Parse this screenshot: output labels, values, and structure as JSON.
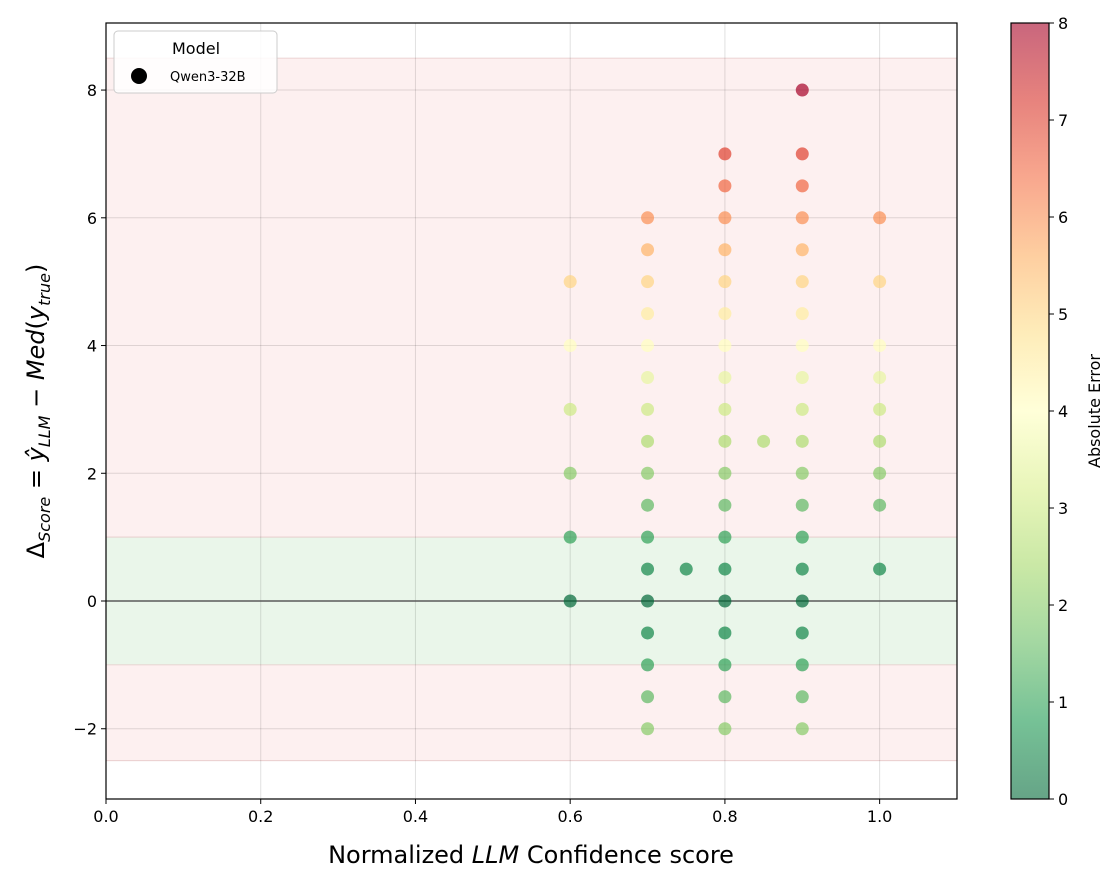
{
  "chart_data": {
    "type": "scatter",
    "title": "",
    "xlabel": "Normalized LLM Confidence score",
    "xlabel_parts": {
      "pre": "Normalized ",
      "italic": "LLM",
      "post": " Confidence score"
    },
    "ylabel": "Δ_Score = ŷ_LLM − Med(y_true)",
    "ylabel_parts": {
      "delta": "Δ",
      "score_sub": "Score",
      "eq": " = ",
      "yhat": "ŷ",
      "llm_sub": "LLM",
      "minus": " − ",
      "med": "Med",
      "lparen": "(",
      "y": "y",
      "true_sub": "true",
      "rparen": ")"
    },
    "xlim": [
      0.0,
      1.1
    ],
    "ylim": [
      -3.1,
      9.05
    ],
    "xticks": [
      0.0,
      0.2,
      0.4,
      0.6,
      0.8,
      1.0
    ],
    "xtick_labels": [
      "0.0",
      "0.2",
      "0.4",
      "0.6",
      "0.8",
      "1.0"
    ],
    "yticks": [
      -2,
      0,
      2,
      4,
      6,
      8
    ],
    "ytick_labels": [
      "−2",
      "0",
      "2",
      "4",
      "6",
      "8"
    ],
    "grid": true,
    "bands": [
      {
        "name": "error-band-upper",
        "y0": 1,
        "y1": 8.5,
        "color": "#fdf0f0"
      },
      {
        "name": "tolerance-band",
        "y0": -1,
        "y1": 1,
        "color": "#eaf6ea"
      },
      {
        "name": "error-band-lower",
        "y0": -2.5,
        "y1": -1,
        "color": "#fdf0f0"
      }
    ],
    "zero_line": 0,
    "legend": {
      "title": "Model",
      "entries": [
        "Qwen3-32B"
      ],
      "placement": "top-left"
    },
    "colorbar": {
      "label": "Absolute Error",
      "min": 0,
      "max": 8,
      "ticks": [
        0,
        1,
        2,
        3,
        4,
        5,
        6,
        7,
        8
      ],
      "tick_labels": [
        "0",
        "1",
        "2",
        "3",
        "4",
        "5",
        "6",
        "7",
        "8"
      ],
      "colormap": "RdYlGn_r"
    },
    "series": [
      {
        "name": "Qwen3-32B",
        "points": [
          {
            "x": 0.6,
            "y": 5
          },
          {
            "x": 0.6,
            "y": 4
          },
          {
            "x": 0.6,
            "y": 3
          },
          {
            "x": 0.6,
            "y": 2
          },
          {
            "x": 0.6,
            "y": 1
          },
          {
            "x": 0.6,
            "y": 0
          },
          {
            "x": 0.7,
            "y": 6
          },
          {
            "x": 0.7,
            "y": 5.5
          },
          {
            "x": 0.7,
            "y": 5
          },
          {
            "x": 0.7,
            "y": 4.5
          },
          {
            "x": 0.7,
            "y": 4
          },
          {
            "x": 0.7,
            "y": 3.5
          },
          {
            "x": 0.7,
            "y": 3
          },
          {
            "x": 0.7,
            "y": 2.5
          },
          {
            "x": 0.7,
            "y": 2
          },
          {
            "x": 0.7,
            "y": 1.5
          },
          {
            "x": 0.7,
            "y": 1
          },
          {
            "x": 0.7,
            "y": 0.5
          },
          {
            "x": 0.7,
            "y": 0
          },
          {
            "x": 0.7,
            "y": -0.5
          },
          {
            "x": 0.7,
            "y": -1
          },
          {
            "x": 0.7,
            "y": -1.5
          },
          {
            "x": 0.7,
            "y": -2
          },
          {
            "x": 0.75,
            "y": 0.5
          },
          {
            "x": 0.8,
            "y": 7
          },
          {
            "x": 0.8,
            "y": 6.5
          },
          {
            "x": 0.8,
            "y": 6
          },
          {
            "x": 0.8,
            "y": 5.5
          },
          {
            "x": 0.8,
            "y": 5
          },
          {
            "x": 0.8,
            "y": 4.5
          },
          {
            "x": 0.8,
            "y": 4
          },
          {
            "x": 0.8,
            "y": 3.5
          },
          {
            "x": 0.8,
            "y": 3
          },
          {
            "x": 0.8,
            "y": 2.5
          },
          {
            "x": 0.8,
            "y": 2
          },
          {
            "x": 0.8,
            "y": 1.5
          },
          {
            "x": 0.8,
            "y": 1
          },
          {
            "x": 0.8,
            "y": 0.5
          },
          {
            "x": 0.8,
            "y": 0
          },
          {
            "x": 0.8,
            "y": -0.5
          },
          {
            "x": 0.8,
            "y": -1
          },
          {
            "x": 0.8,
            "y": -1.5
          },
          {
            "x": 0.8,
            "y": -2
          },
          {
            "x": 0.85,
            "y": 2.5
          },
          {
            "x": 0.9,
            "y": 8
          },
          {
            "x": 0.9,
            "y": 7
          },
          {
            "x": 0.9,
            "y": 6.5
          },
          {
            "x": 0.9,
            "y": 6
          },
          {
            "x": 0.9,
            "y": 5.5
          },
          {
            "x": 0.9,
            "y": 5
          },
          {
            "x": 0.9,
            "y": 4.5
          },
          {
            "x": 0.9,
            "y": 4
          },
          {
            "x": 0.9,
            "y": 3.5
          },
          {
            "x": 0.9,
            "y": 3
          },
          {
            "x": 0.9,
            "y": 2.5
          },
          {
            "x": 0.9,
            "y": 2
          },
          {
            "x": 0.9,
            "y": 1.5
          },
          {
            "x": 0.9,
            "y": 1
          },
          {
            "x": 0.9,
            "y": 0.5
          },
          {
            "x": 0.9,
            "y": 0
          },
          {
            "x": 0.9,
            "y": -0.5
          },
          {
            "x": 0.9,
            "y": -1
          },
          {
            "x": 0.9,
            "y": -1.5
          },
          {
            "x": 0.9,
            "y": -2
          },
          {
            "x": 1.0,
            "y": 6
          },
          {
            "x": 1.0,
            "y": 5
          },
          {
            "x": 1.0,
            "y": 4
          },
          {
            "x": 1.0,
            "y": 3.5
          },
          {
            "x": 1.0,
            "y": 3
          },
          {
            "x": 1.0,
            "y": 2.5
          },
          {
            "x": 1.0,
            "y": 2
          },
          {
            "x": 1.0,
            "y": 1.5
          },
          {
            "x": 1.0,
            "y": 0.5
          }
        ]
      }
    ]
  }
}
